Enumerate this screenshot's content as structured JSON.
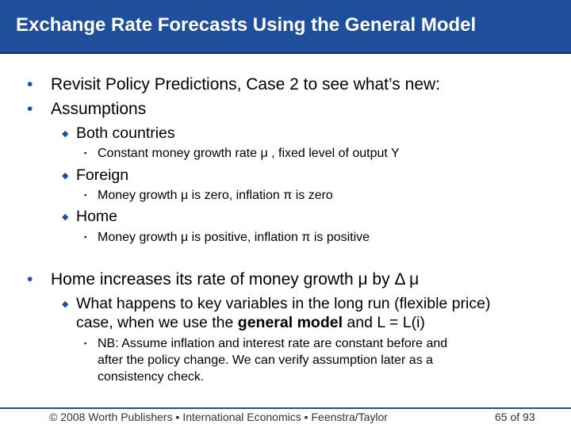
{
  "slide": {
    "title": "Exchange Rate Forecasts Using the General Model",
    "colors": {
      "title_bar": "#1f4e9a",
      "accent": "#1f4e9a",
      "text": "#000000"
    },
    "bullets": {
      "b1": "Revisit Policy Predictions, Case 2 to see what’s new:",
      "b2": "Assumptions",
      "b2_1": "Both countries",
      "b2_1_1": "Constant money growth rate μ , fixed level of output Y",
      "b2_2": "Foreign",
      "b2_2_1": "Money growth μ is zero, inflation π is zero",
      "b2_3": "Home",
      "b2_3_1": "Money growth μ is positive, inflation π is positive",
      "b3": "Home increases its rate of money growth μ  by Δ μ",
      "b3_1_line1": "What happens to key variables in the long run (flexible price)",
      "b3_1_line2_pre": "case, when we use the ",
      "b3_1_line2_bold": "general model",
      "b3_1_line2_post": " and L = L(i)",
      "b3_1_1_line1": "NB: Assume inflation and interest rate are constant before and",
      "b3_1_1_line2": "after the policy change. We can verify assumption later as a",
      "b3_1_1_line3": "consistency check."
    },
    "bullet_glyphs": {
      "level1": "•",
      "level2": "◆",
      "level3": "▪"
    }
  },
  "footer": {
    "copyright": "© 2008 Worth Publishers ▪ International Economics ▪ Feenstra/Taylor",
    "page": "65 of 93"
  }
}
